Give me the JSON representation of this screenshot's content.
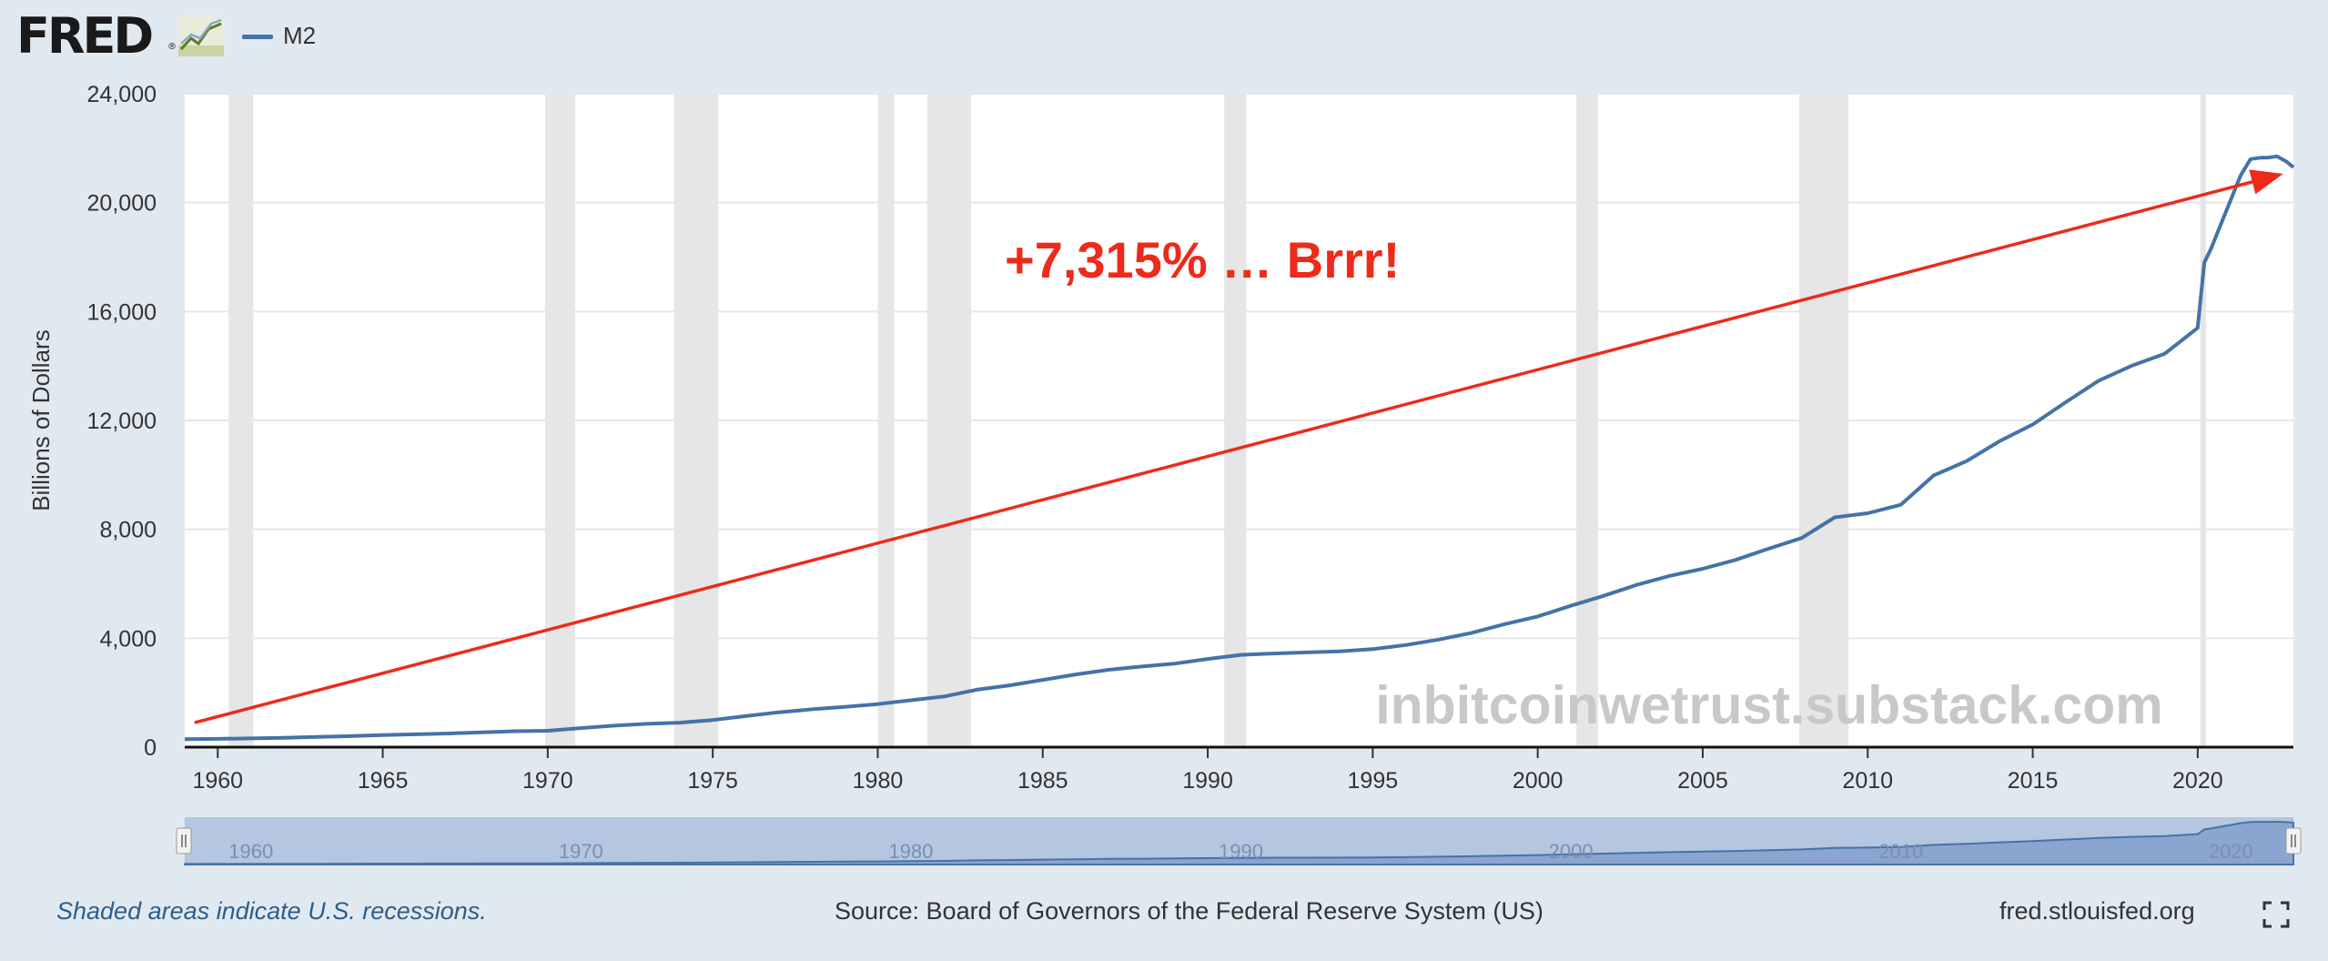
{
  "header": {
    "logo_text": "FRED",
    "logo_mark": "®",
    "logo_icon": "fred-graph-icon",
    "legend_label": "M2"
  },
  "colors": {
    "background": "#e1e9f0",
    "plot_background": "#ffffff",
    "series": "#4572a7",
    "recession": "#e6e6e6",
    "arrow": "#ee2a1a",
    "annotation": "#ee2a1a",
    "watermark": "#c8c8c8",
    "navigator_fill": "#b4c6e0"
  },
  "chart_data": {
    "type": "line",
    "title": "",
    "xlabel": "",
    "ylabel": "Billions of Dollars",
    "xlim": [
      1959,
      2022.9
    ],
    "ylim": [
      0,
      24000
    ],
    "grid": true,
    "legend_placement": "top-left",
    "x_ticks": [
      "1960",
      "1965",
      "1970",
      "1975",
      "1980",
      "1985",
      "1990",
      "1995",
      "2000",
      "2005",
      "2010",
      "2015",
      "2020"
    ],
    "y_ticks": [
      "0",
      "4,000",
      "8,000",
      "12,000",
      "16,000",
      "20,000",
      "24,000"
    ],
    "series": [
      {
        "name": "M2",
        "x": [
          1959.0,
          1960.0,
          1961.0,
          1962.0,
          1963.0,
          1964.0,
          1965.0,
          1966.0,
          1967.0,
          1968.0,
          1969.0,
          1970.0,
          1971.0,
          1972.0,
          1973.0,
          1974.0,
          1975.0,
          1976.0,
          1977.0,
          1978.0,
          1979.0,
          1980.0,
          1981.0,
          1982.0,
          1983.0,
          1984.0,
          1985.0,
          1986.0,
          1987.0,
          1988.0,
          1989.0,
          1990.0,
          1991.0,
          1992.0,
          1993.0,
          1994.0,
          1995.0,
          1996.0,
          1997.0,
          1998.0,
          1999.0,
          2000.0,
          2001.0,
          2002.0,
          2003.0,
          2004.0,
          2005.0,
          2006.0,
          2007.0,
          2008.0,
          2009.0,
          2010.0,
          2011.0,
          2012.0,
          2013.0,
          2014.0,
          2015.0,
          2016.0,
          2017.0,
          2018.0,
          2019.0,
          2020.0,
          2020.2,
          2020.4,
          2020.7,
          2021.0,
          2021.3,
          2021.6,
          2021.9,
          2022.1,
          2022.4,
          2022.7,
          2022.9
        ],
        "values": [
          290,
          305,
          320,
          345,
          375,
          405,
          440,
          470,
          500,
          545,
          585,
          600,
          700,
          790,
          855,
          900,
          995,
          1140,
          1280,
          1390,
          1480,
          1580,
          1720,
          1860,
          2110,
          2270,
          2470,
          2670,
          2840,
          2960,
          3070,
          3240,
          3390,
          3440,
          3480,
          3520,
          3600,
          3750,
          3950,
          4200,
          4520,
          4800,
          5190,
          5560,
          5960,
          6290,
          6550,
          6880,
          7290,
          7680,
          8440,
          8590,
          8900,
          9980,
          10510,
          11240,
          11850,
          12670,
          13460,
          14010,
          14450,
          15400,
          17800,
          18300,
          19200,
          20100,
          21000,
          21600,
          21650,
          21650,
          21700,
          21500,
          21300
        ]
      }
    ],
    "recessions": [
      [
        1960.33,
        1961.08
      ],
      [
        1969.92,
        1970.83
      ],
      [
        1973.83,
        1975.17
      ],
      [
        1980.0,
        1980.5
      ],
      [
        1981.5,
        1982.83
      ],
      [
        1990.5,
        1991.17
      ],
      [
        2001.17,
        2001.83
      ],
      [
        2007.92,
        2009.42
      ],
      [
        2020.08,
        2020.25
      ]
    ],
    "annotations": [
      {
        "text": "+7,315% … Brrr!",
        "type": "label"
      },
      {
        "type": "arrow",
        "from": [
          1959.3,
          900
        ],
        "to": [
          2022.4,
          21000
        ]
      }
    ],
    "watermark": "inbitcoinwetrust.substack.com",
    "navigator_labels": [
      "1960",
      "1970",
      "1980",
      "1990",
      "2000",
      "2010",
      "2020"
    ]
  },
  "footer": {
    "note": "Shaded areas indicate U.S. recessions.",
    "source": "Source: Board of Governors of the Federal Reserve System (US)",
    "site": "fred.stlouisfed.org",
    "fullscreen_icon": "fullscreen-icon"
  }
}
